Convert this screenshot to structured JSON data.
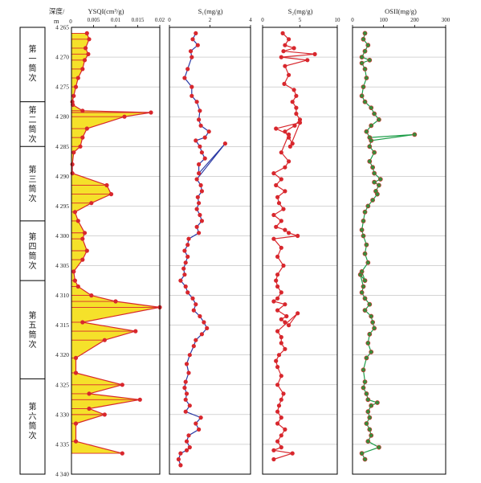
{
  "header": {
    "depth_label": "深度/",
    "depth_unit": "m",
    "depth_top_tick": "0"
  },
  "segments": [
    {
      "label": "第一筒次",
      "from": 4264.5,
      "to": 4277.5
    },
    {
      "label": "第二筒次",
      "from": 4277.5,
      "to": 4285.0
    },
    {
      "label": "第三筒次",
      "from": 4285.0,
      "to": 4297.5
    },
    {
      "label": "第四筒次",
      "from": 4297.5,
      "to": 4307.5
    },
    {
      "label": "第五筒次",
      "from": 4307.5,
      "to": 4324.0
    },
    {
      "label": "第六筒次",
      "from": 4324.0,
      "to": 4338.0
    }
  ],
  "colors": {
    "axis": "#000000",
    "grid": "#aaaaaa",
    "point_red": "#d8272d",
    "line_red": "#d8272d",
    "fill_yellow": "#f5e12a",
    "line_blue": "#2b3aa5",
    "line_green": "#1f9e4a",
    "point_green": "#3a8a3a"
  },
  "chart_data": [
    {
      "type": "table",
      "title": "",
      "ylabel": "深度/m",
      "ylim": [
        4265,
        4340
      ],
      "yticks": [
        4265,
        4270,
        4275,
        4280,
        4285,
        4290,
        4295,
        4300,
        4305,
        4310,
        4315,
        4320,
        4325,
        4330,
        4335,
        4340
      ],
      "ytick_labels": [
        "4 265",
        "4 270",
        "4 275",
        "4 280",
        "4 285",
        "4 290",
        "4 295",
        "4 300",
        "4 305",
        "4 310",
        "4 315",
        "4 320",
        "4 325",
        "4 330",
        "4 335",
        "4 340"
      ]
    },
    {
      "type": "area",
      "title": "YSQI(cm³/g)",
      "xlim": [
        0,
        0.02
      ],
      "xticks": [
        0,
        0.005,
        0.01,
        0.015,
        0.02
      ],
      "xtick_labels": [
        "0",
        "0.005",
        "0.01",
        "0.015",
        "0.02"
      ],
      "grid": true,
      "x": [
        0.0035,
        0.004,
        0.0032,
        0.0038,
        0.003,
        0.0025,
        0.0015,
        0.001,
        0.0005,
        0.0002,
        0.0003,
        0.0025,
        0.018,
        0.012,
        0.0035,
        0.0025,
        0.002,
        0.0005,
        0.0002,
        0.0002,
        0.008,
        0.009,
        0.0045,
        0.0008,
        0.0015,
        0.003,
        0.0025,
        0.0035,
        0.0025,
        0.0005,
        0.0008,
        0.0015,
        0.0045,
        0.01,
        0.02,
        0.0025,
        0.0145,
        0.0075,
        0.001,
        0.001,
        0.0115,
        0.004,
        0.0155,
        0.004,
        0.0075,
        0.001,
        0.001,
        0.0115
      ],
      "y": [
        4266.0,
        4267.0,
        4268.5,
        4269.5,
        4270.5,
        4272.0,
        4273.5,
        4275.0,
        4276.5,
        4277.5,
        4278.0,
        4279.0,
        4279.3,
        4280.0,
        4282.0,
        4283.5,
        4285.0,
        4286.0,
        4288.0,
        4289.5,
        4291.5,
        4293.0,
        4294.5,
        4296.0,
        4297.5,
        4299.5,
        4300.5,
        4302.5,
        4304.0,
        4306.0,
        4307.5,
        4308.5,
        4310.0,
        4311.0,
        4312.0,
        4314.5,
        4316.0,
        4317.5,
        4320.5,
        4323.0,
        4325.0,
        4326.5,
        4327.5,
        4329.0,
        4330.0,
        4331.5,
        4334.5,
        4336.5
      ]
    },
    {
      "type": "line",
      "title": "S₁(mg/g)",
      "xlim": [
        0,
        4
      ],
      "xticks": [
        0,
        2,
        4
      ],
      "xtick_labels": [
        "0",
        "2",
        "4"
      ],
      "grid": true,
      "x": [
        1.3,
        1.15,
        1.4,
        1.05,
        1.1,
        0.9,
        0.75,
        1.1,
        1.1,
        1.35,
        1.5,
        1.45,
        1.55,
        1.95,
        1.75,
        1.3,
        1.5,
        1.6,
        1.75,
        1.45,
        1.45,
        2.75,
        1.35,
        1.55,
        1.6,
        1.4,
        1.45,
        1.35,
        1.5,
        1.6,
        1.35,
        1.45,
        0.95,
        0.9,
        0.75,
        0.9,
        0.8,
        0.7,
        0.75,
        0.55,
        0.8,
        0.9,
        1.15,
        1.3,
        1.2,
        1.5,
        1.7,
        1.85,
        1.6,
        1.3,
        1.2,
        1.0,
        0.85,
        0.95,
        0.8,
        0.75,
        0.85,
        0.8,
        1.0,
        0.8,
        1.55,
        1.3,
        1.45,
        0.95,
        0.85,
        1.0,
        0.85,
        0.55,
        0.45,
        0.55
      ],
      "y": [
        4266.0,
        4267.0,
        4268.0,
        4269.0,
        4270.0,
        4272.0,
        4273.5,
        4275.0,
        4276.5,
        4277.5,
        4279.0,
        4280.5,
        4281.5,
        4282.5,
        4283.5,
        4284.0,
        4285.0,
        4286.0,
        4287.0,
        4288.0,
        4289.5,
        4284.5,
        4290.5,
        4291.5,
        4292.5,
        4293.5,
        4294.5,
        4295.5,
        4296.5,
        4297.5,
        4298.5,
        4299.5,
        4300.5,
        4301.5,
        4302.5,
        4303.5,
        4304.5,
        4305.5,
        4306.5,
        4307.5,
        4308.5,
        4309.5,
        4310.5,
        4311.5,
        4312.5,
        4313.5,
        4314.5,
        4315.5,
        4316.5,
        4317.5,
        4318.5,
        4320.0,
        4321.5,
        4323.0,
        4324.5,
        4325.5,
        4326.5,
        4327.5,
        4328.5,
        4329.5,
        4330.5,
        4331.5,
        4332.5,
        4333.5,
        4334.5,
        4335.5,
        4336.0,
        4336.5,
        4337.5,
        4338.5
      ]
    },
    {
      "type": "line",
      "title": "S₂(mg/g)",
      "xlim": [
        0,
        10
      ],
      "xticks": [
        0,
        5,
        10
      ],
      "xtick_labels": [
        "0",
        "5",
        "10"
      ],
      "grid": true,
      "x": [
        2.7,
        3.5,
        3.0,
        4.2,
        2.8,
        7.0,
        2.5,
        6.0,
        3.0,
        3.5,
        2.9,
        4.2,
        4.5,
        4.0,
        4.5,
        4.5,
        5.0,
        4.3,
        3.0,
        3.5,
        4.0,
        3.7,
        5.0,
        1.8,
        3.5,
        2.5,
        3.5,
        3.0,
        1.5,
        2.5,
        1.8,
        3.0,
        2.0,
        2.2,
        2.8,
        1.5,
        2.5,
        1.8,
        3.0,
        3.5,
        4.7,
        1.5,
        2.5,
        2.0,
        2.8,
        2.0,
        1.8,
        2.0,
        2.5,
        2.0,
        1.5,
        3.0,
        2.0,
        3.2,
        2.5,
        3.0,
        3.5,
        4.7,
        2.0,
        2.5,
        2.5,
        3.0,
        2.2,
        1.8,
        2.0,
        2.5,
        2.0,
        2.8,
        2.5,
        2.2,
        2.0,
        2.5,
        2.0,
        3.0,
        2.5,
        2.0,
        2.5,
        1.5,
        4.0,
        1.5
      ],
      "y": [
        4266.0,
        4267.0,
        4268.0,
        4268.5,
        4269.0,
        4269.5,
        4270.0,
        4270.5,
        4271.5,
        4273.0,
        4274.5,
        4275.5,
        4276.5,
        4277.5,
        4278.5,
        4279.5,
        4280.5,
        4281.5,
        4282.5,
        4283.5,
        4284.5,
        4285.0,
        4281.0,
        4282.0,
        4283.0,
        4286.0,
        4287.5,
        4288.5,
        4289.5,
        4290.5,
        4291.5,
        4292.5,
        4293.5,
        4294.5,
        4295.5,
        4296.5,
        4297.5,
        4298.5,
        4299.0,
        4299.5,
        4300.0,
        4300.5,
        4302.0,
        4303.5,
        4305.0,
        4306.5,
        4307.5,
        4308.5,
        4309.5,
        4310.5,
        4311.0,
        4311.5,
        4312.5,
        4313.5,
        4314.0,
        4314.5,
        4315.0,
        4313.0,
        4316.0,
        4317.0,
        4318.0,
        4319.0,
        4320.0,
        4321.0,
        4322.0,
        4323.5,
        4325.0,
        4326.5,
        4327.5,
        4328.5,
        4329.5,
        4330.5,
        4331.5,
        4332.5,
        4333.5,
        4334.5,
        4335.5,
        4336.0,
        4336.5,
        4337.5
      ]
    },
    {
      "type": "line",
      "title": "OSII(mg/g)",
      "xlim": [
        0,
        300
      ],
      "xticks": [
        0,
        100,
        200,
        300
      ],
      "xtick_labels": [
        "0",
        "100",
        "200",
        "300"
      ],
      "grid": true,
      "x": [
        40,
        35,
        50,
        40,
        30,
        55,
        30,
        40,
        45,
        35,
        30,
        40,
        60,
        70,
        85,
        60,
        45,
        55,
        200,
        60,
        55,
        70,
        55,
        65,
        70,
        90,
        70,
        85,
        75,
        80,
        65,
        50,
        40,
        35,
        30,
        35,
        45,
        40,
        50,
        30,
        40,
        25,
        35,
        30,
        40,
        55,
        40,
        60,
        65,
        70,
        55,
        50,
        60,
        45,
        35,
        40,
        35,
        45,
        50,
        80,
        60,
        50,
        55,
        45,
        55,
        60,
        50,
        85,
        30,
        40
      ],
      "y": [
        4266.0,
        4267.0,
        4268.0,
        4269.0,
        4270.0,
        4270.5,
        4271.0,
        4272.0,
        4273.5,
        4275.0,
        4276.5,
        4277.5,
        4278.5,
        4279.5,
        4280.5,
        4281.5,
        4282.5,
        4283.5,
        4283.0,
        4284.0,
        4285.0,
        4286.0,
        4287.5,
        4288.5,
        4289.5,
        4290.5,
        4291.0,
        4291.5,
        4292.5,
        4293.0,
        4294.0,
        4295.0,
        4296.0,
        4297.5,
        4299.0,
        4300.0,
        4301.5,
        4303.0,
        4304.5,
        4306.0,
        4307.5,
        4306.5,
        4308.5,
        4309.5,
        4310.5,
        4311.5,
        4312.5,
        4313.5,
        4314.5,
        4315.5,
        4316.5,
        4318.0,
        4319.5,
        4320.5,
        4322.5,
        4324.5,
        4325.5,
        4326.5,
        4327.5,
        4328.0,
        4328.5,
        4329.5,
        4330.5,
        4331.5,
        4332.5,
        4333.5,
        4334.5,
        4335.5,
        4336.5,
        4337.5
      ]
    }
  ]
}
